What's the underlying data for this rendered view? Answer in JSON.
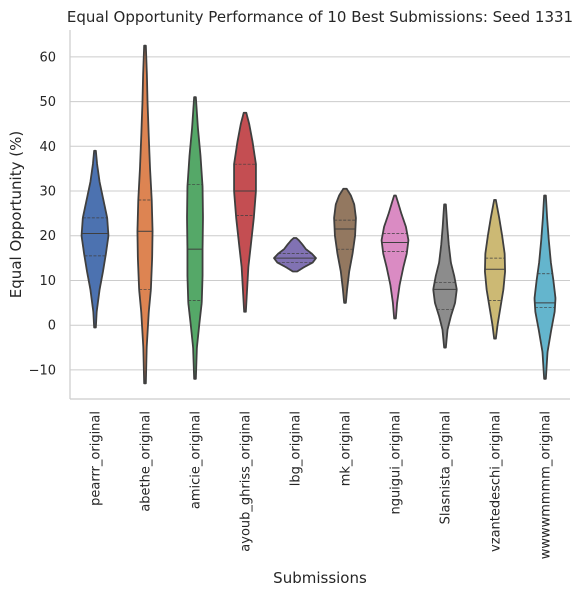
{
  "chart_data": {
    "type": "violin",
    "title": "Equal Opportunity Performance of 10 Best Submissions: Seed 1331",
    "xlabel": "Submissions",
    "ylabel": "Equal Opportunity (%)",
    "ylim": [
      -16.5,
      66
    ],
    "yticks": [
      -10,
      0,
      10,
      20,
      30,
      40,
      50,
      60
    ],
    "ytick_labels": [
      "−10",
      "0",
      "10",
      "20",
      "30",
      "40",
      "50",
      "60"
    ],
    "grid": "horizontal",
    "inner": "quartile",
    "categories": [
      "pearrr_original",
      "abethe_original",
      "amicie_original",
      "ayoub_ghriss_original",
      "lbg_original",
      "mk_original",
      "nguigui_original",
      "Slasnista_original",
      "vzantedeschi_original",
      "wwwwmmmm_original"
    ],
    "series": [
      {
        "category": "pearrr_original",
        "color": "#4c72b0",
        "min": -0.5,
        "max": 39,
        "q1": 15.5,
        "median": 20.5,
        "q3": 24,
        "profile": [
          [
            -0.5,
            0.2
          ],
          [
            3,
            0.4
          ],
          [
            8,
            1.1
          ],
          [
            12,
            1.9
          ],
          [
            16,
            2.6
          ],
          [
            20,
            3.2
          ],
          [
            24,
            2.9
          ],
          [
            28,
            2.0
          ],
          [
            32,
            1.1
          ],
          [
            36,
            0.5
          ],
          [
            39,
            0.2
          ]
        ]
      },
      {
        "category": "abethe_original",
        "color": "#dd8452",
        "min": -13,
        "max": 62.5,
        "q1": 8,
        "median": 21,
        "q3": 28,
        "profile": [
          [
            -13,
            0.2
          ],
          [
            -5,
            0.4
          ],
          [
            3,
            0.9
          ],
          [
            8,
            1.4
          ],
          [
            15,
            1.7
          ],
          [
            21,
            1.8
          ],
          [
            28,
            1.6
          ],
          [
            35,
            1.2
          ],
          [
            42,
            0.9
          ],
          [
            50,
            0.6
          ],
          [
            56,
            0.45
          ],
          [
            62.5,
            0.2
          ]
        ]
      },
      {
        "category": "amicie_original",
        "color": "#55a868",
        "min": -12,
        "max": 51,
        "q1": 5.5,
        "median": 17,
        "q3": 31.5,
        "profile": [
          [
            -12,
            0.2
          ],
          [
            -5,
            0.45
          ],
          [
            0,
            1.0
          ],
          [
            5,
            1.6
          ],
          [
            11,
            1.8
          ],
          [
            17,
            1.8
          ],
          [
            24,
            1.9
          ],
          [
            31,
            1.8
          ],
          [
            38,
            1.3
          ],
          [
            44,
            0.7
          ],
          [
            51,
            0.2
          ]
        ]
      },
      {
        "category": "ayoub_ghriss_original",
        "color": "#c44e52",
        "min": 3,
        "max": 47.5,
        "q1": 24.5,
        "median": 30,
        "q3": 36,
        "profile": [
          [
            3,
            0.2
          ],
          [
            8,
            0.5
          ],
          [
            13,
            0.8
          ],
          [
            18,
            1.4
          ],
          [
            24,
            2.1
          ],
          [
            30,
            2.6
          ],
          [
            36,
            2.6
          ],
          [
            41,
            1.8
          ],
          [
            45,
            1.0
          ],
          [
            47.5,
            0.3
          ]
        ]
      },
      {
        "category": "lbg_original",
        "color": "#8172b3",
        "min": 12,
        "max": 19.5,
        "q1": 14,
        "median": 15,
        "q3": 16,
        "profile": [
          [
            12,
            0.5
          ],
          [
            13,
            2.2
          ],
          [
            14,
            4.2
          ],
          [
            15,
            5.0
          ],
          [
            16,
            4.0
          ],
          [
            17,
            2.6
          ],
          [
            18,
            1.8
          ],
          [
            19,
            0.9
          ],
          [
            19.5,
            0.3
          ]
        ]
      },
      {
        "category": "mk_original",
        "color": "#937860",
        "min": 5,
        "max": 30.5,
        "q1": 17,
        "median": 21.5,
        "q3": 23.5,
        "profile": [
          [
            5,
            0.2
          ],
          [
            8,
            0.5
          ],
          [
            12,
            1.0
          ],
          [
            16,
            1.8
          ],
          [
            20,
            2.4
          ],
          [
            24,
            2.6
          ],
          [
            27,
            2.2
          ],
          [
            29,
            1.4
          ],
          [
            30.5,
            0.4
          ]
        ]
      },
      {
        "category": "nguigui_original",
        "color": "#da8bc3",
        "min": 1.5,
        "max": 29,
        "q1": 16.5,
        "median": 18.5,
        "q3": 20.5,
        "profile": [
          [
            1.5,
            0.2
          ],
          [
            5,
            0.5
          ],
          [
            9,
            1.1
          ],
          [
            13,
            2.0
          ],
          [
            16,
            2.8
          ],
          [
            19,
            3.2
          ],
          [
            22,
            2.6
          ],
          [
            25,
            1.5
          ],
          [
            27.5,
            0.7
          ],
          [
            29,
            0.2
          ]
        ]
      },
      {
        "category": "Slasnista_original",
        "color": "#8c8c8c",
        "min": -5,
        "max": 27,
        "q1": 3.5,
        "median": 8,
        "q3": 9.5,
        "profile": [
          [
            -5,
            0.2
          ],
          [
            -1,
            0.6
          ],
          [
            2,
            1.4
          ],
          [
            5,
            2.4
          ],
          [
            8,
            2.8
          ],
          [
            11,
            2.2
          ],
          [
            14,
            1.4
          ],
          [
            18,
            0.9
          ],
          [
            22,
            0.55
          ],
          [
            27,
            0.2
          ]
        ]
      },
      {
        "category": "vzantedeschi_original",
        "color": "#ccb974",
        "min": -3,
        "max": 28,
        "q1": 5.5,
        "median": 12.5,
        "q3": 15,
        "profile": [
          [
            -3,
            0.2
          ],
          [
            0,
            0.6
          ],
          [
            4,
            1.3
          ],
          [
            8,
            2.0
          ],
          [
            12,
            2.4
          ],
          [
            16,
            2.3
          ],
          [
            20,
            1.7
          ],
          [
            24,
            1.0
          ],
          [
            28,
            0.2
          ]
        ]
      },
      {
        "category": "wwwwmmmm_original",
        "color": "#64b5cd",
        "min": -12,
        "max": 29,
        "q1": 4,
        "median": 5,
        "q3": 11.5,
        "profile": [
          [
            -12,
            0.2
          ],
          [
            -6,
            0.6
          ],
          [
            -1,
            1.5
          ],
          [
            3,
            2.3
          ],
          [
            6,
            2.5
          ],
          [
            10,
            2.0
          ],
          [
            14,
            1.4
          ],
          [
            19,
            0.9
          ],
          [
            24,
            0.5
          ],
          [
            29,
            0.2
          ]
        ]
      }
    ]
  }
}
